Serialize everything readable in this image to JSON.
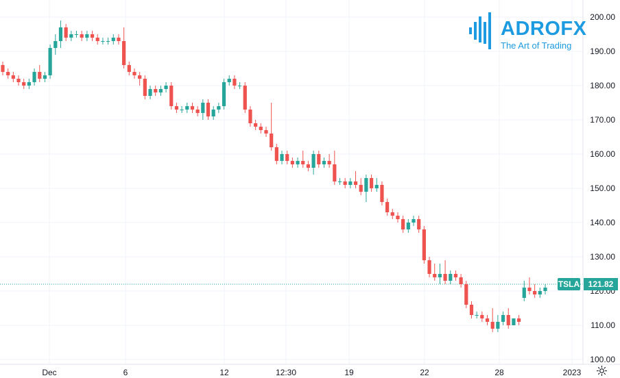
{
  "logo": {
    "word": "ADROFX",
    "tagline": "The Art of Trading"
  },
  "colors": {
    "up": "#26a69a",
    "down": "#ef5350",
    "grid": "#f0f3fa",
    "axis_text": "#131722",
    "brand": "#1d9be0"
  },
  "price_label": {
    "symbol": "TSLA",
    "value": "121.82"
  },
  "settings_icon": "gear-icon",
  "chart_data": {
    "type": "candlestick",
    "title": "",
    "ylim": [
      100,
      200
    ],
    "y_ticks": [
      "200.00",
      "190.00",
      "180.00",
      "170.00",
      "160.00",
      "150.00",
      "140.00",
      "130.00",
      "120.00",
      "110.00",
      "100.00"
    ],
    "x_ticks": [
      "Dec",
      "6",
      "12",
      "12:30",
      "19",
      "22",
      "28",
      "2023"
    ],
    "last_price": 121.82,
    "grid": true,
    "candles": [
      [
        186,
        187,
        183,
        184
      ],
      [
        184,
        185,
        182,
        183
      ],
      [
        183,
        184,
        181,
        182
      ],
      [
        182,
        183,
        180,
        181
      ],
      [
        181,
        182,
        179,
        180
      ],
      [
        180,
        182,
        179,
        181
      ],
      [
        181,
        185,
        180,
        184
      ],
      [
        184,
        186,
        181,
        182
      ],
      [
        182,
        184,
        181,
        183
      ],
      [
        183,
        192,
        182,
        191
      ],
      [
        191,
        195,
        189,
        193
      ],
      [
        193,
        199,
        191,
        197
      ],
      [
        197,
        198,
        193,
        194
      ],
      [
        194,
        196,
        193,
        195
      ],
      [
        195,
        196,
        194,
        195
      ],
      [
        195,
        196,
        193,
        194
      ],
      [
        194,
        196,
        193,
        195
      ],
      [
        195,
        196,
        193,
        194
      ],
      [
        194,
        195,
        192,
        193
      ],
      [
        193,
        194,
        192,
        193
      ],
      [
        193,
        194,
        192,
        193
      ],
      [
        193,
        195,
        192,
        194
      ],
      [
        194,
        195,
        192,
        193
      ],
      [
        193,
        197,
        185,
        186
      ],
      [
        186,
        187,
        183,
        184
      ],
      [
        184,
        185,
        182,
        183
      ],
      [
        183,
        184,
        180,
        182
      ],
      [
        182,
        183,
        176,
        177
      ],
      [
        177,
        180,
        176,
        179
      ],
      [
        179,
        180,
        177,
        178
      ],
      [
        178,
        180,
        177,
        179
      ],
      [
        179,
        181,
        178,
        180
      ],
      [
        180,
        181,
        173,
        174
      ],
      [
        174,
        175,
        172,
        173
      ],
      [
        173,
        174,
        172,
        173
      ],
      [
        173,
        175,
        172,
        174
      ],
      [
        174,
        175,
        172,
        173
      ],
      [
        173,
        174,
        171,
        172
      ],
      [
        172,
        176,
        170,
        175
      ],
      [
        175,
        176,
        170,
        171
      ],
      [
        171,
        174,
        170,
        173
      ],
      [
        173,
        175,
        172,
        174
      ],
      [
        174,
        182,
        173,
        181
      ],
      [
        181,
        183,
        180,
        182
      ],
      [
        182,
        183,
        179,
        180
      ],
      [
        180,
        181,
        179,
        180
      ],
      [
        180,
        181,
        172,
        173
      ],
      [
        173,
        174,
        168,
        169
      ],
      [
        169,
        170,
        167,
        168
      ],
      [
        168,
        169,
        166,
        167
      ],
      [
        167,
        168,
        165,
        166
      ],
      [
        166,
        175,
        161,
        162
      ],
      [
        162,
        163,
        157,
        158
      ],
      [
        158,
        161,
        157,
        160
      ],
      [
        160,
        161,
        157,
        158
      ],
      [
        158,
        159,
        156,
        157
      ],
      [
        157,
        159,
        156,
        158
      ],
      [
        158,
        161,
        156,
        157
      ],
      [
        157,
        158,
        155,
        156
      ],
      [
        156,
        161,
        154,
        160
      ],
      [
        160,
        161,
        156,
        157
      ],
      [
        157,
        159,
        156,
        158
      ],
      [
        158,
        160,
        156,
        157
      ],
      [
        157,
        161,
        151,
        152
      ],
      [
        152,
        153,
        151,
        152
      ],
      [
        152,
        153,
        150,
        151
      ],
      [
        151,
        153,
        150,
        152
      ],
      [
        152,
        155,
        150,
        151
      ],
      [
        151,
        153,
        148,
        149
      ],
      [
        149,
        154,
        146,
        153
      ],
      [
        153,
        154,
        149,
        150
      ],
      [
        150,
        153,
        149,
        151
      ],
      [
        151,
        152,
        145,
        146
      ],
      [
        146,
        147,
        142,
        143
      ],
      [
        143,
        144,
        141,
        142
      ],
      [
        142,
        143,
        140,
        141
      ],
      [
        141,
        142,
        137,
        138
      ],
      [
        138,
        141,
        137,
        140
      ],
      [
        140,
        142,
        139,
        141
      ],
      [
        141,
        142,
        137,
        138
      ],
      [
        138,
        139,
        128,
        129
      ],
      [
        129,
        130,
        124,
        125
      ],
      [
        125,
        128,
        123,
        124
      ],
      [
        124,
        128,
        122,
        125
      ],
      [
        125,
        129,
        122,
        123
      ],
      [
        123,
        126,
        122,
        125
      ],
      [
        125,
        126,
        123,
        124
      ],
      [
        124,
        125,
        121,
        122
      ],
      [
        122,
        123,
        115,
        116
      ],
      [
        116,
        117,
        112,
        113
      ],
      [
        113,
        114,
        112,
        113
      ],
      [
        113,
        114,
        111,
        112
      ],
      [
        112,
        113,
        110,
        111
      ],
      [
        111,
        115,
        108,
        109
      ],
      [
        109,
        113,
        108,
        111
      ],
      [
        111,
        114,
        110,
        113
      ],
      [
        113,
        115,
        109,
        110
      ],
      [
        110,
        112,
        110,
        112
      ],
      [
        112,
        113,
        110,
        111
      ],
      [
        118,
        123,
        117,
        121
      ],
      [
        121,
        124,
        119,
        120
      ],
      [
        120,
        122,
        118,
        119
      ],
      [
        119,
        121,
        118,
        120
      ],
      [
        120,
        122,
        119,
        121
      ]
    ]
  }
}
